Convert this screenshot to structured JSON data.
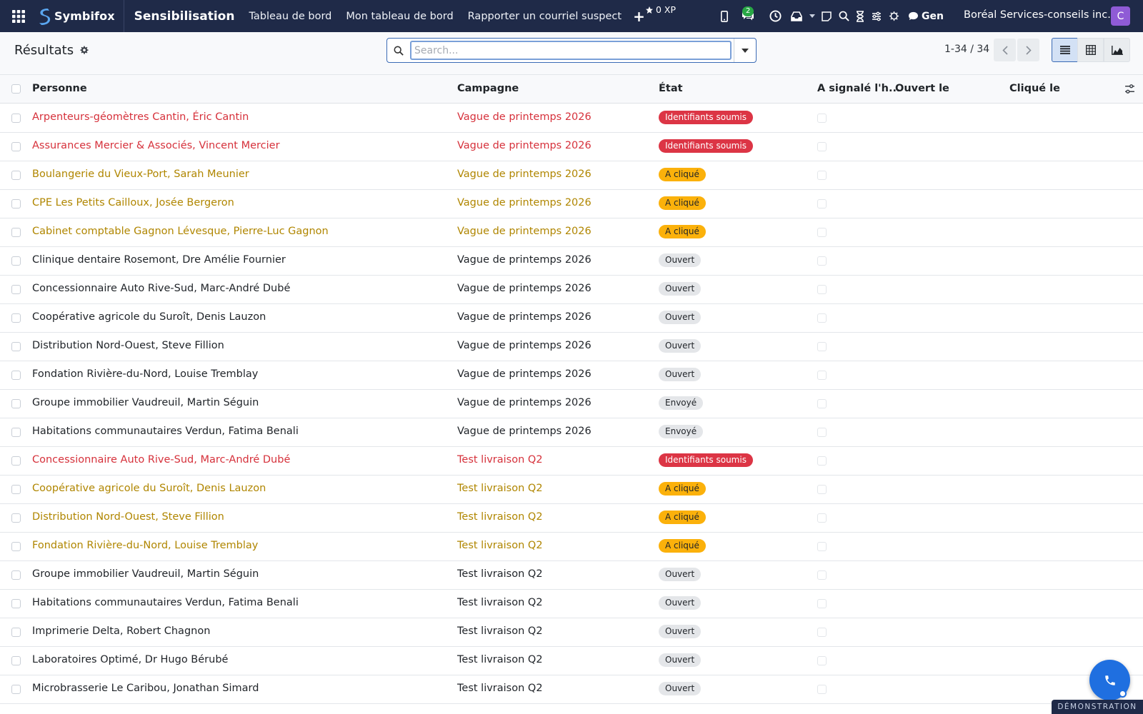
{
  "navbar": {
    "brand": "Symbifox",
    "module": "Sensibilisation",
    "menu": [
      "Tableau de bord",
      "Mon tableau de bord",
      "Rapporter un courriel suspect"
    ],
    "plus": "+",
    "xp": "0 XP",
    "chat_badge": "2",
    "gen": "Gen",
    "company": "Boréal Services-conseils inc.",
    "avatar_letter": "C",
    "avatar_color": "#8f5bd6",
    "bg_color": "#1f2a48"
  },
  "control": {
    "title": "Résultats",
    "search_placeholder": "Search...",
    "pager": "1-34 / 34",
    "views": [
      "list-view-icon",
      "grid-view-icon",
      "graph-view-icon"
    ],
    "active_view": "list"
  },
  "table": {
    "headers": [
      "Personne",
      "Campagne",
      "État",
      "A signalé l'h...",
      "Ouvert le",
      "Cliqué le"
    ],
    "rows": [
      {
        "person": "Arpenteurs-géomètres Cantin, Éric Cantin",
        "campaign": "Vague de printemps 2026",
        "status": "Identifiants soumis",
        "level": "danger"
      },
      {
        "person": "Assurances Mercier & Associés, Vincent Mercier",
        "campaign": "Vague de printemps 2026",
        "status": "Identifiants soumis",
        "level": "danger"
      },
      {
        "person": "Boulangerie du Vieux-Port, Sarah Meunier",
        "campaign": "Vague de printemps 2026",
        "status": "A cliqué",
        "level": "warning"
      },
      {
        "person": "CPE Les Petits Cailloux, Josée Bergeron",
        "campaign": "Vague de printemps 2026",
        "status": "A cliqué",
        "level": "warning"
      },
      {
        "person": "Cabinet comptable Gagnon Lévesque, Pierre-Luc Gagnon",
        "campaign": "Vague de printemps 2026",
        "status": "A cliqué",
        "level": "warning"
      },
      {
        "person": "Clinique dentaire Rosemont, Dre Amélie Fournier",
        "campaign": "Vague de printemps 2026",
        "status": "Ouvert",
        "level": "neutral"
      },
      {
        "person": "Concessionnaire Auto Rive-Sud, Marc-André Dubé",
        "campaign": "Vague de printemps 2026",
        "status": "Ouvert",
        "level": "neutral"
      },
      {
        "person": "Coopérative agricole du Suroît, Denis Lauzon",
        "campaign": "Vague de printemps 2026",
        "status": "Ouvert",
        "level": "neutral"
      },
      {
        "person": "Distribution Nord-Ouest, Steve Fillion",
        "campaign": "Vague de printemps 2026",
        "status": "Ouvert",
        "level": "neutral"
      },
      {
        "person": "Fondation Rivière-du-Nord, Louise Tremblay",
        "campaign": "Vague de printemps 2026",
        "status": "Ouvert",
        "level": "neutral"
      },
      {
        "person": "Groupe immobilier Vaudreuil, Martin Séguin",
        "campaign": "Vague de printemps 2026",
        "status": "Envoyé",
        "level": "neutral"
      },
      {
        "person": "Habitations communautaires Verdun, Fatima Benali",
        "campaign": "Vague de printemps 2026",
        "status": "Envoyé",
        "level": "neutral"
      },
      {
        "person": "Concessionnaire Auto Rive-Sud, Marc-André Dubé",
        "campaign": "Test livraison Q2",
        "status": "Identifiants soumis",
        "level": "danger"
      },
      {
        "person": "Coopérative agricole du Suroît, Denis Lauzon",
        "campaign": "Test livraison Q2",
        "status": "A cliqué",
        "level": "warning"
      },
      {
        "person": "Distribution Nord-Ouest, Steve Fillion",
        "campaign": "Test livraison Q2",
        "status": "A cliqué",
        "level": "warning"
      },
      {
        "person": "Fondation Rivière-du-Nord, Louise Tremblay",
        "campaign": "Test livraison Q2",
        "status": "A cliqué",
        "level": "warning"
      },
      {
        "person": "Groupe immobilier Vaudreuil, Martin Séguin",
        "campaign": "Test livraison Q2",
        "status": "Ouvert",
        "level": "neutral"
      },
      {
        "person": "Habitations communautaires Verdun, Fatima Benali",
        "campaign": "Test livraison Q2",
        "status": "Ouvert",
        "level": "neutral"
      },
      {
        "person": "Imprimerie Delta, Robert Chagnon",
        "campaign": "Test livraison Q2",
        "status": "Ouvert",
        "level": "neutral"
      },
      {
        "person": "Laboratoires Optimé, Dr Hugo Bérubé",
        "campaign": "Test livraison Q2",
        "status": "Ouvert",
        "level": "neutral"
      },
      {
        "person": "Microbrasserie Le Caribou, Jonathan Simard",
        "campaign": "Test livraison Q2",
        "status": "Ouvert",
        "level": "neutral"
      }
    ]
  },
  "colors": {
    "danger": "#dc3545",
    "warning": "#fbb10b",
    "danger_text": "#d6313b",
    "warning_text": "#b08600",
    "accent": "#1f6fe0"
  },
  "footer": {
    "demo_label": "DÉMONSTRATION"
  }
}
